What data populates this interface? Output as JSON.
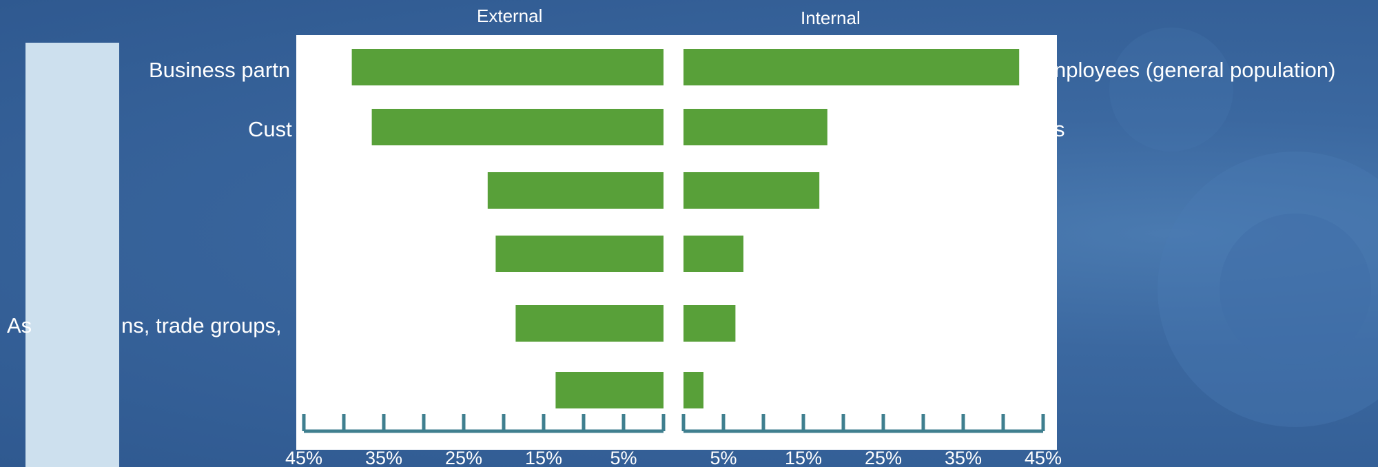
{
  "chart_data": {
    "type": "bar",
    "orientation": "horizontal-diverging",
    "panels": [
      "External",
      "Internal"
    ],
    "external": {
      "categories": [
        "Business partners",
        "Customers",
        "",
        "",
        "Associations, trade groups, ...",
        ""
      ],
      "values": [
        39,
        36.5,
        22,
        21,
        18.5,
        13.5
      ]
    },
    "internal": {
      "categories": [
        "Employees (general population)",
        "...s",
        "",
        "",
        "",
        ""
      ],
      "values": [
        42,
        18,
        17,
        7.5,
        6.5,
        2.5
      ]
    },
    "x_tick_labels": [
      "45%",
      "35%",
      "25%",
      "15%",
      "5%",
      "5%",
      "15%",
      "25%",
      "35%",
      "45%"
    ],
    "xlim": [
      0,
      45
    ],
    "colors": {
      "bar": "#58a039",
      "axis": "#3f7f8f",
      "side_bar": "#cde0ee"
    }
  },
  "labels": {
    "external_title": "External",
    "internal_title": "Internal",
    "left_row1": "Business partn",
    "left_row2": "Cust",
    "left_row5_a": "As",
    "left_row5_b": "ns, trade groups,",
    "right_row1": "nployees (general population)",
    "right_row2": "s"
  }
}
